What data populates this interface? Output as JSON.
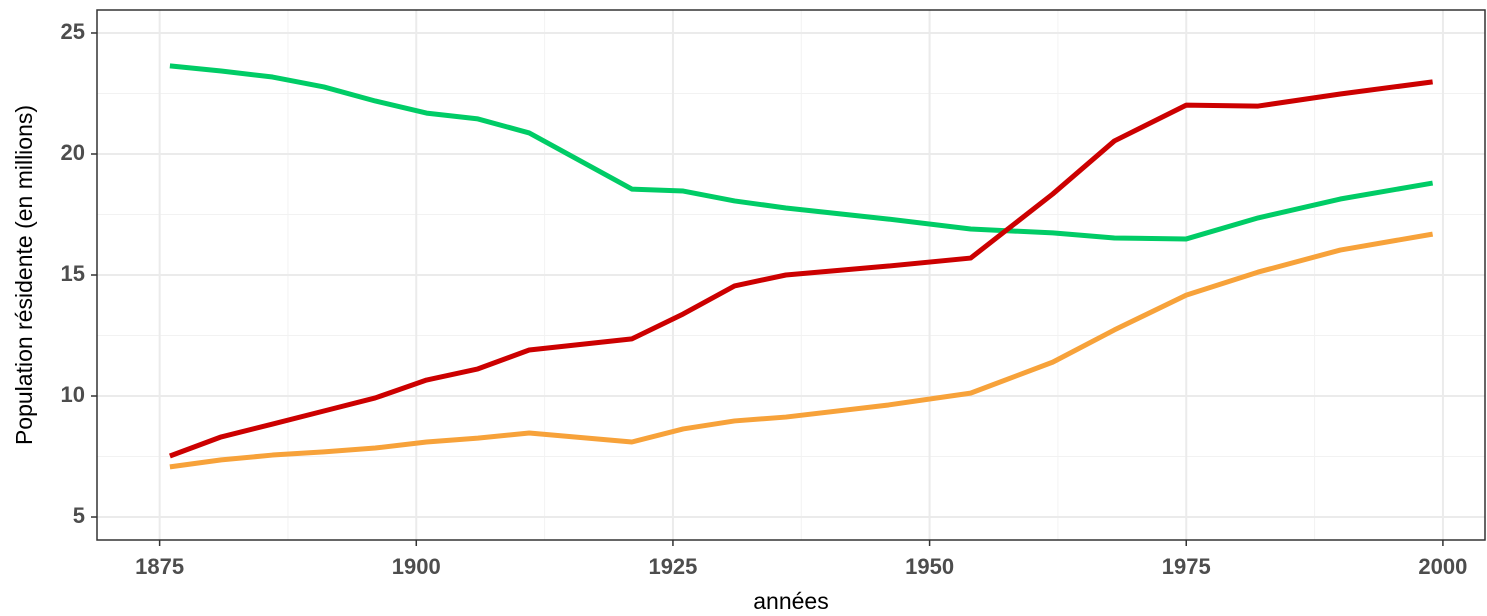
{
  "chart_data": {
    "type": "line",
    "xlabel": "années",
    "ylabel": "Population résidente (en millions)",
    "x": [
      1876,
      1881,
      1886,
      1891,
      1896,
      1901,
      1906,
      1911,
      1921,
      1926,
      1931,
      1936,
      1946,
      1954,
      1962,
      1968,
      1975,
      1982,
      1990,
      1999
    ],
    "series": [
      {
        "color": "#00cc66",
        "values": [
          23.64,
          23.43,
          23.18,
          22.77,
          22.19,
          21.69,
          21.45,
          20.87,
          18.55,
          18.47,
          18.06,
          17.77,
          17.31,
          16.9,
          16.74,
          16.53,
          16.49,
          17.36,
          18.14,
          18.8
        ]
      },
      {
        "color": "#cc0000",
        "values": [
          7.52,
          8.31,
          8.84,
          9.38,
          9.92,
          10.66,
          11.12,
          11.9,
          12.36,
          13.39,
          14.55,
          15.0,
          15.37,
          15.7,
          18.35,
          20.54,
          22.02,
          21.98,
          22.48,
          22.98
        ]
      },
      {
        "color": "#f7a23a",
        "values": [
          7.07,
          7.36,
          7.56,
          7.69,
          7.85,
          8.1,
          8.26,
          8.47,
          8.1,
          8.64,
          8.97,
          9.13,
          9.63,
          10.12,
          11.4,
          12.73,
          14.17,
          15.12,
          16.03,
          16.69
        ]
      }
    ],
    "xlim": [
      1868.9,
      2004.1
    ],
    "xticks": [
      1875,
      1900,
      1925,
      1950,
      1975,
      2000
    ],
    "ylim": [
      4.05,
      25.95
    ],
    "yticks": [
      5,
      10,
      15,
      20,
      25
    ],
    "grid": true
  }
}
